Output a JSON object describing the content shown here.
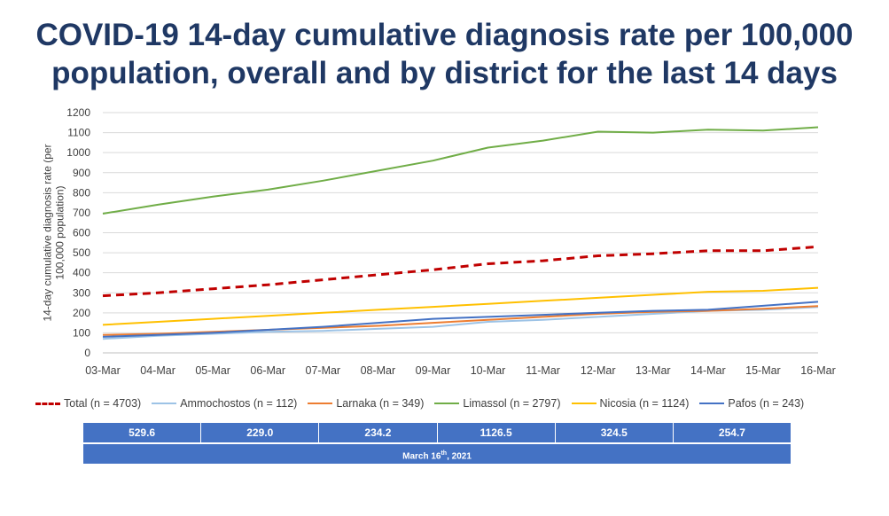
{
  "title_line1": "COVID-19 14-day cumulative diagnosis rate per 100,000",
  "title_line2": "population, overall and by district for the last 14 days",
  "chart_data": {
    "type": "line",
    "ylabel": "14-day cumulative diagnosis rate (per 100,000 population)",
    "xlabel": "",
    "ylim": [
      0,
      1200
    ],
    "ytick_step": 100,
    "grid": true,
    "categories": [
      "03-Mar",
      "04-Mar",
      "05-Mar",
      "06-Mar",
      "07-Mar",
      "08-Mar",
      "09-Mar",
      "10-Mar",
      "11-Mar",
      "12-Mar",
      "13-Mar",
      "14-Mar",
      "15-Mar",
      "16-Mar"
    ],
    "series": [
      {
        "name": "Total (n = 4703)",
        "color": "#c00000",
        "dashed": true,
        "values": [
          285,
          300,
          320,
          340,
          365,
          390,
          415,
          445,
          460,
          485,
          495,
          510,
          510,
          530
        ]
      },
      {
        "name": "Ammochostos (n = 112)",
        "color": "#9dc3e6",
        "dashed": false,
        "values": [
          70,
          85,
          95,
          105,
          110,
          120,
          130,
          155,
          165,
          180,
          195,
          210,
          215,
          229
        ]
      },
      {
        "name": "Larnaka (n = 349)",
        "color": "#ed7d31",
        "dashed": false,
        "values": [
          90,
          95,
          105,
          115,
          125,
          135,
          150,
          165,
          180,
          195,
          205,
          210,
          220,
          234
        ]
      },
      {
        "name": "Limassol (n = 2797)",
        "color": "#70ad47",
        "dashed": false,
        "values": [
          695,
          740,
          780,
          815,
          860,
          910,
          960,
          1025,
          1060,
          1105,
          1100,
          1115,
          1110,
          1127
        ]
      },
      {
        "name": "Nicosia (n = 1124)",
        "color": "#ffc000",
        "dashed": false,
        "values": [
          140,
          155,
          170,
          185,
          200,
          215,
          230,
          245,
          260,
          275,
          290,
          305,
          310,
          325
        ]
      },
      {
        "name": "Pafos (n = 243)",
        "color": "#4472c4",
        "dashed": false,
        "values": [
          80,
          90,
          100,
          115,
          130,
          150,
          170,
          180,
          190,
          200,
          210,
          215,
          235,
          255
        ]
      }
    ]
  },
  "summary": {
    "values": [
      "529.6",
      "229.0",
      "234.2",
      "1126.5",
      "324.5",
      "254.7"
    ],
    "date_prefix": "March 16",
    "date_sup": "th",
    "date_suffix": ", 2021"
  }
}
